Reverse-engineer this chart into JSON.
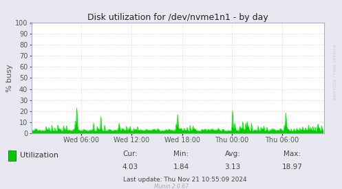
{
  "title": "Disk utilization for /dev/nvme1n1 - by day",
  "ylabel": "% busy",
  "bg_color": "#e8e8f0",
  "plot_bg_color": "#ffffff",
  "grid_color": "#ffaaaa",
  "line_color": "#00ee00",
  "fill_color": "#00cc00",
  "yticks": [
    0,
    10,
    20,
    30,
    40,
    50,
    60,
    70,
    80,
    90,
    100
  ],
  "ylim": [
    0,
    100
  ],
  "xtick_labels": [
    "Wed 06:00",
    "Wed 12:00",
    "Wed 18:00",
    "Thu 00:00",
    "Thu 06:00"
  ],
  "legend_label": "Utilization",
  "legend_color": "#00cc00",
  "legend_edge_color": "#005500",
  "cur": "4.03",
  "min_val": "1.84",
  "avg": "3.13",
  "max_val": "18.97",
  "last_update": "Last update: Thu Nov 21 10:55:09 2024",
  "munin_version": "Munin 2.0.67",
  "watermark": "RRDTOOL / TOBI OETIKER",
  "axis_color": "#aaaacc",
  "text_color": "#555555"
}
